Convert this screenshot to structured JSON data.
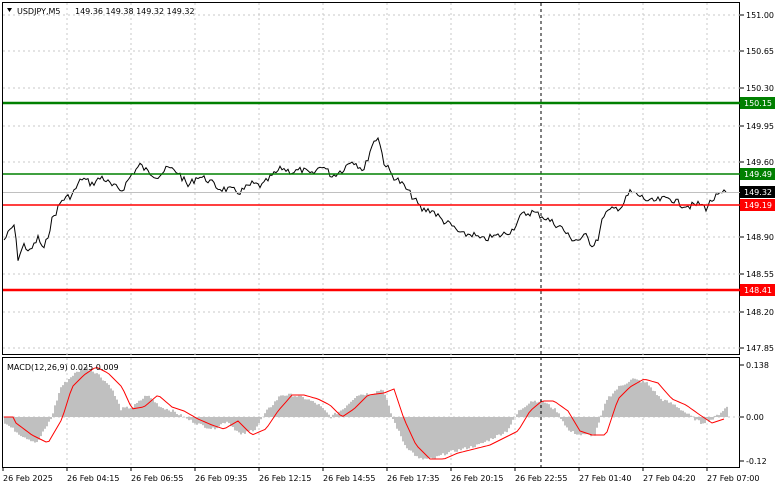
{
  "header": {
    "symbol": "USDJPY,M5",
    "ohlc": "149.36 149.38 149.32 149.32",
    "dropdown_icon": "triangle-down-icon"
  },
  "price_axis": {
    "ticks": [
      "151.00",
      "150.65",
      "150.30",
      "149.95",
      "149.60",
      "148.90",
      "148.55",
      "148.20",
      "147.85"
    ],
    "current_price": "149.32",
    "current_price_color": "#000000"
  },
  "levels": [
    {
      "label": "150.15",
      "color": "#008000"
    },
    {
      "label": "149.49",
      "color": "#008000"
    },
    {
      "label": "149.19",
      "color": "#ff0000"
    },
    {
      "label": "148.41",
      "color": "#ff0000"
    }
  ],
  "macd": {
    "title": "MACD(12,26,9) 0.025 0.009",
    "ticks": [
      "0.138",
      "0.00",
      "-0.12"
    ],
    "histogram_color": "#c0c0c0",
    "signal_color": "#ff0000"
  },
  "time_axis": {
    "labels": [
      "26 Feb 2025",
      "26 Feb 04:15",
      "26 Feb 06:55",
      "26 Feb 09:35",
      "26 Feb 12:15",
      "26 Feb 14:55",
      "26 Feb 17:35",
      "26 Feb 20:15",
      "26 Feb 22:55",
      "27 Feb 01:40",
      "27 Feb 04:20",
      "27 Feb 07:00"
    ]
  }
}
